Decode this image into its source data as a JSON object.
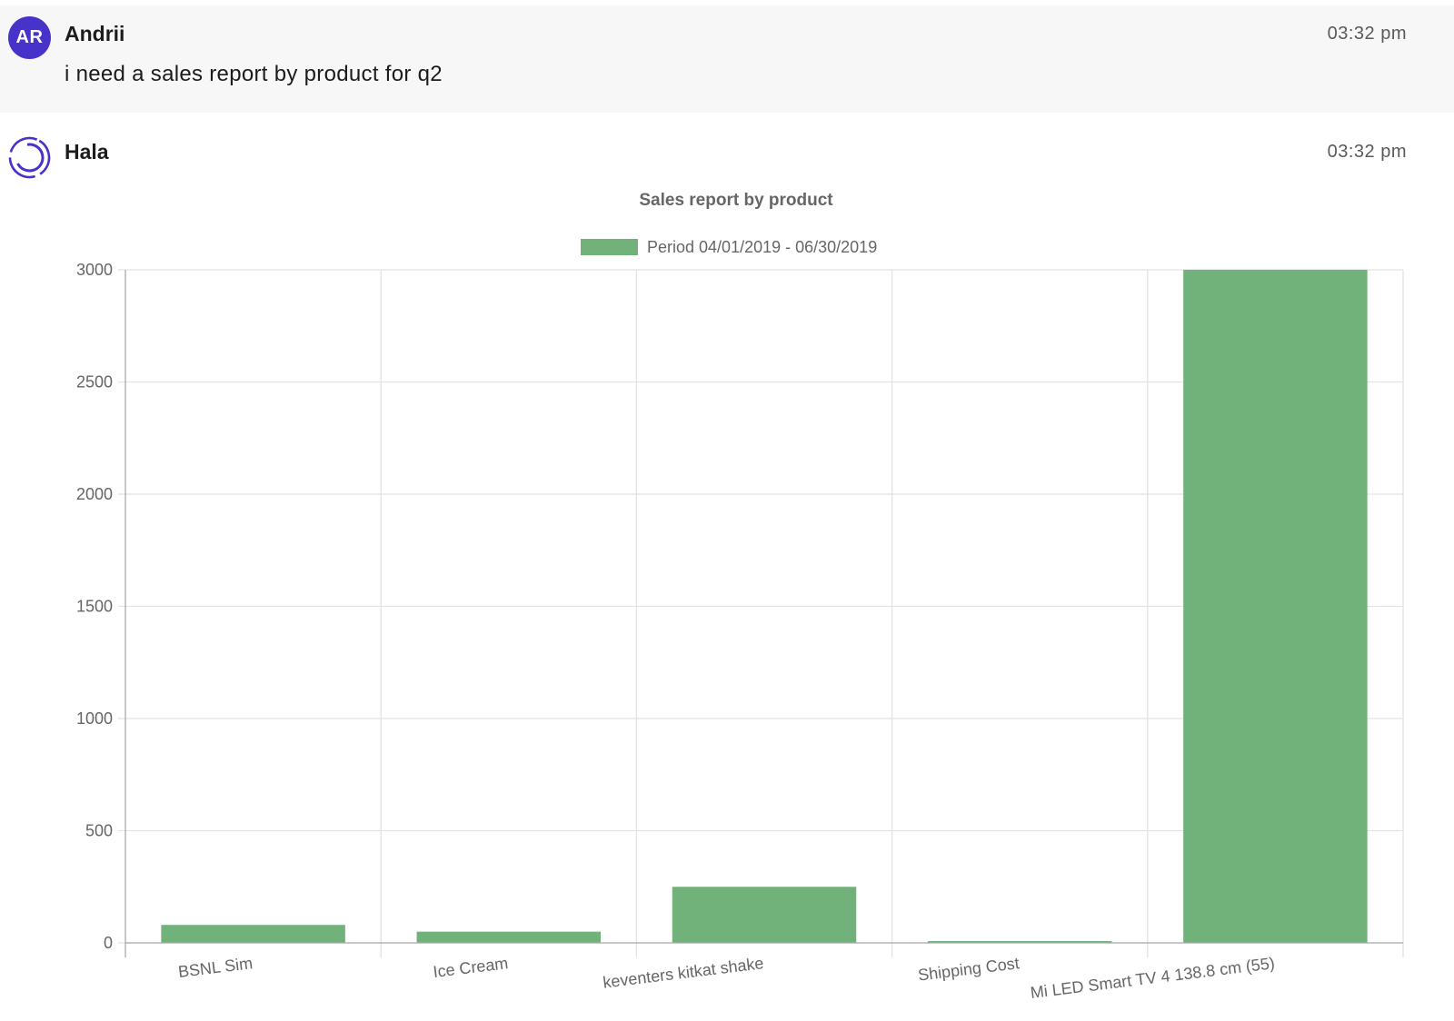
{
  "messages": {
    "user": {
      "avatar_initials": "AR",
      "sender": "Andrii",
      "time": "03:32 pm",
      "text": "i need a sales report by product for q2"
    },
    "bot": {
      "sender": "Hala",
      "time": "03:32 pm",
      "avatar_icon": "hala-ring-logo"
    }
  },
  "colors": {
    "accent": "#4733c9",
    "bar": "#70b27a"
  },
  "chart_data": {
    "type": "bar",
    "title": "Sales report by product",
    "legend_position": "top",
    "grid": true,
    "categories": [
      "BSNL Sim",
      "Ice Cream",
      "keventers kitkat shake",
      "Shipping Cost",
      "Mi LED Smart TV 4 138.8 cm (55)"
    ],
    "series": [
      {
        "name": "Period 04/01/2019 - 06/30/2019",
        "values": [
          80,
          50,
          250,
          8,
          3000
        ]
      }
    ],
    "ylim": [
      0,
      3000
    ],
    "yticks": [
      0,
      500,
      1000,
      1500,
      2000,
      2500,
      3000
    ]
  }
}
